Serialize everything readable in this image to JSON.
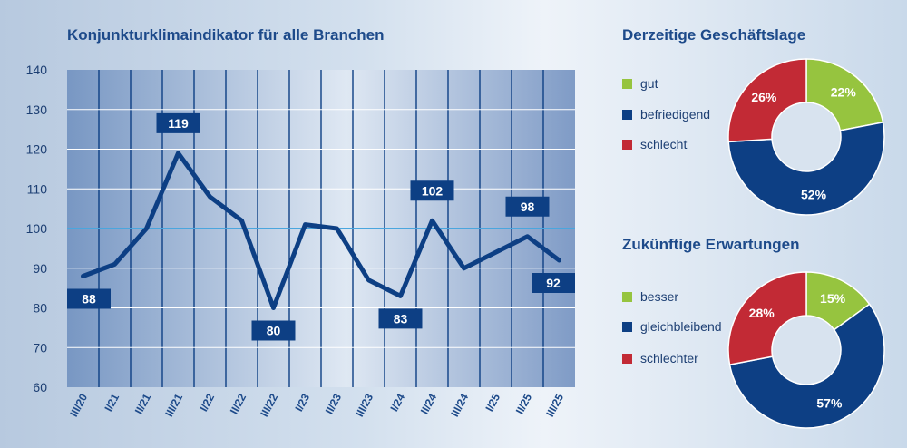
{
  "colors": {
    "navy": "#0d3f84",
    "green": "#96c43f",
    "red": "#c22a35",
    "ref_line": "#4aa6de"
  },
  "chart_data": [
    {
      "type": "line",
      "title": "Konjunkturklimaindikator für alle Branchen",
      "categories": [
        "III/20",
        "I/21",
        "II/21",
        "III/21",
        "I/22",
        "II/22",
        "III/22",
        "I/23",
        "II/23",
        "III/23",
        "I/24",
        "II/24",
        "III/24",
        "I/25",
        "II/25",
        "III/25"
      ],
      "values": [
        88,
        91,
        100,
        119,
        108,
        102,
        80,
        101,
        100,
        87,
        83,
        102,
        90,
        94,
        98,
        92
      ],
      "labeled_values": [
        {
          "index": 0,
          "text": "88",
          "position": "below"
        },
        {
          "index": 3,
          "text": "119",
          "position": "above"
        },
        {
          "index": 6,
          "text": "80",
          "position": "below"
        },
        {
          "index": 10,
          "text": "83",
          "position": "below"
        },
        {
          "index": 11,
          "text": "102",
          "position": "above"
        },
        {
          "index": 14,
          "text": "98",
          "position": "above"
        },
        {
          "index": 15,
          "text": "92",
          "position": "below"
        }
      ],
      "reference_line": 100,
      "ylim": [
        60,
        140
      ],
      "yticks": [
        "140",
        "130",
        "120",
        "110",
        "100",
        "90",
        "80",
        "70",
        "60"
      ],
      "ytick_values": [
        140,
        130,
        120,
        110,
        100,
        90,
        80,
        70,
        60
      ],
      "xlabel": "",
      "ylabel": "",
      "grid": true
    },
    {
      "type": "pie",
      "title": "Derzeitige Geschäftslage",
      "categories": [
        "gut",
        "befriedigend",
        "schlecht"
      ],
      "values": [
        22,
        52,
        26
      ],
      "labels": [
        "22%",
        "52%",
        "26%"
      ],
      "colors": [
        "#96c43f",
        "#0d3f84",
        "#c22a35"
      ]
    },
    {
      "type": "pie",
      "title": "Zukünftige Erwartungen",
      "categories": [
        "besser",
        "gleichbleibend",
        "schlechter"
      ],
      "values": [
        15,
        57,
        28
      ],
      "labels": [
        "15%",
        "57%",
        "28%"
      ],
      "colors": [
        "#96c43f",
        "#0d3f84",
        "#c22a35"
      ]
    }
  ]
}
